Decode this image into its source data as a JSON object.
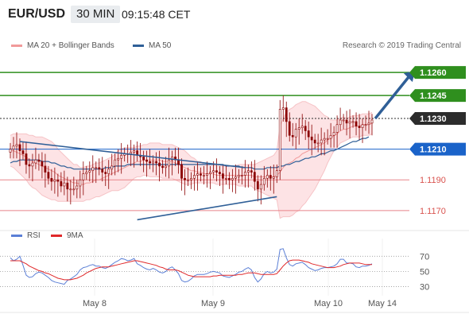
{
  "header": {
    "symbol": "EUR/USD",
    "timeframe": "30 MIN",
    "time": "09:15:48 CET"
  },
  "legend": {
    "bollinger_label": "MA 20 + Bollinger Bands",
    "ma50_label": "MA 50",
    "credit": "Research © 2019 Trading Central",
    "rsi_label": "RSI",
    "ma9_label": "9MA"
  },
  "colors": {
    "bollinger": "#f19a9a",
    "band_fill": "#fde3e5",
    "ma50": "#2f5f97",
    "candle": "#8b0000",
    "candle_up": "#ffffff",
    "rsi": "#5b7fd6",
    "ma9": "#e0282a",
    "green_level": "#2f8f1e",
    "blue_level": "#1a63c9",
    "red_level": "#e8858a",
    "pivot": "#2c2c2c"
  },
  "chart_data": {
    "type": "candlestick",
    "instrument": "EUR/USD",
    "x_labels": [
      "May 8",
      "May 9",
      "May 10",
      "May 14"
    ],
    "y_range": [
      1.1158,
      1.1272
    ],
    "levels": [
      {
        "value": 1.126,
        "label": "1.1260",
        "kind": "resistance",
        "color": "#2f8f1e"
      },
      {
        "value": 1.1245,
        "label": "1.1245",
        "kind": "resistance",
        "color": "#2f8f1e"
      },
      {
        "value": 1.123,
        "label": "1.1230",
        "kind": "pivot",
        "color": "#2c2c2c"
      },
      {
        "value": 1.121,
        "label": "1.1210",
        "kind": "current",
        "color": "#1a63c9"
      },
      {
        "value": 1.119,
        "label": "1.1190",
        "kind": "support",
        "color": "#e8858a"
      },
      {
        "value": 1.117,
        "label": "1.1170",
        "kind": "support",
        "color": "#e8858a"
      }
    ],
    "close": [
      1.121,
      1.1212,
      1.1213,
      1.1209,
      1.1207,
      1.12,
      1.1199,
      1.1201,
      1.1203,
      1.1202,
      1.1199,
      1.1195,
      1.1191,
      1.1189,
      1.119,
      1.1189,
      1.1186,
      1.1188,
      1.1184,
      1.1184,
      1.1184,
      1.1186,
      1.119,
      1.1194,
      1.1195,
      1.1196,
      1.1198,
      1.1198,
      1.1197,
      1.1195,
      1.1194,
      1.1197,
      1.1199,
      1.1203,
      1.1204,
      1.1206,
      1.1207,
      1.1207,
      1.1208,
      1.1209,
      1.1206,
      1.1205,
      1.1203,
      1.1202,
      1.1201,
      1.1202,
      1.1201,
      1.1199,
      1.1198,
      1.1199,
      1.1203,
      1.1205,
      1.1203,
      1.12,
      1.1191,
      1.119,
      1.119,
      1.1191,
      1.1193,
      1.1194,
      1.1193,
      1.1193,
      1.1194,
      1.1195,
      1.1196,
      1.1195,
      1.1194,
      1.1191,
      1.1191,
      1.119,
      1.1191,
      1.1192,
      1.1193,
      1.1193,
      1.1195,
      1.1196,
      1.1195,
      1.1189,
      1.1184,
      1.1187,
      1.1191,
      1.1193,
      1.1191,
      1.1192,
      1.1196,
      1.1236,
      1.1237,
      1.1228,
      1.1219,
      1.1218,
      1.1223,
      1.1224,
      1.1225,
      1.1222,
      1.1218,
      1.1216,
      1.1214,
      1.1214,
      1.1216,
      1.1217,
      1.1217,
      1.1219,
      1.1221,
      1.1226,
      1.1229,
      1.1229,
      1.1227,
      1.1228,
      1.1228,
      1.1225,
      1.1224,
      1.1226,
      1.1226,
      1.1227,
      1.1229
    ],
    "ma20": [
      1.1209,
      1.1209,
      1.1208,
      1.1207,
      1.1206,
      1.1205,
      1.1203,
      1.1202,
      1.1201,
      1.12,
      1.1199,
      1.1198,
      1.1197,
      1.1196,
      1.1195,
      1.1193,
      1.1192,
      1.1191,
      1.119,
      1.1189,
      1.1188,
      1.1188,
      1.1187,
      1.1187,
      1.1188,
      1.1188,
      1.1189,
      1.119,
      1.119,
      1.1191,
      1.1192,
      1.1193,
      1.1194,
      1.1195,
      1.1196,
      1.1197,
      1.1198,
      1.1199,
      1.12,
      1.1201,
      1.1202,
      1.1202,
      1.1203,
      1.1203,
      1.1203,
      1.1203,
      1.1203,
      1.1203,
      1.1202,
      1.1202,
      1.1202,
      1.1202,
      1.1201,
      1.12,
      1.1199,
      1.1198,
      1.1197,
      1.1196,
      1.1196,
      1.1195,
      1.1195,
      1.1194,
      1.1194,
      1.1194,
      1.1194,
      1.1193,
      1.1193,
      1.1193,
      1.1193,
      1.1193,
      1.1193,
      1.1193,
      1.1193,
      1.1193,
      1.1193,
      1.1193,
      1.1193,
      1.1192,
      1.1192,
      1.1192,
      1.1192,
      1.1192,
      1.1192,
      1.1192,
      1.1193,
      1.1195,
      1.1198,
      1.12,
      1.1201,
      1.1202,
      1.1204,
      1.1205,
      1.1207,
      1.1208,
      1.1209,
      1.121,
      1.1211,
      1.1212,
      1.1213,
      1.1214,
      1.1216,
      1.1217,
      1.1219,
      1.122,
      1.1222,
      1.1223,
      1.1223,
      1.1224,
      1.1225,
      1.1225,
      1.1225,
      1.1226,
      1.1226,
      1.1226,
      1.1227
    ],
    "band_width": [
      0.001,
      0.0011,
      0.0012,
      0.0013,
      0.0014,
      0.0015,
      0.0016,
      0.0017,
      0.0017,
      0.0018,
      0.0019,
      0.0019,
      0.0019,
      0.0019,
      0.0018,
      0.0017,
      0.0016,
      0.0015,
      0.0014,
      0.0013,
      0.0012,
      0.0012,
      0.0011,
      0.0011,
      0.0011,
      0.0011,
      0.0011,
      0.0011,
      0.0011,
      0.0011,
      0.0011,
      0.0011,
      0.0011,
      0.0012,
      0.0013,
      0.0013,
      0.0013,
      0.0012,
      0.0011,
      0.001,
      0.001,
      0.001,
      0.001,
      0.001,
      0.0011,
      0.0011,
      0.0011,
      0.0011,
      0.0011,
      0.0011,
      0.0011,
      0.0011,
      0.0011,
      0.0011,
      0.0011,
      0.0011,
      0.001,
      0.0009,
      0.0008,
      0.0007,
      0.0007,
      0.0006,
      0.0006,
      0.0006,
      0.0006,
      0.0006,
      0.0006,
      0.0006,
      0.0006,
      0.0006,
      0.0006,
      0.0006,
      0.0007,
      0.0007,
      0.0007,
      0.0007,
      0.0007,
      0.0008,
      0.0009,
      0.001,
      0.0011,
      0.0012,
      0.0013,
      0.0014,
      0.0016,
      0.003,
      0.0032,
      0.0034,
      0.0035,
      0.0035,
      0.0035,
      0.0035,
      0.0034,
      0.0033,
      0.0031,
      0.0029,
      0.0027,
      0.0024,
      0.0021,
      0.0018,
      0.0015,
      0.0012,
      0.001,
      0.0009,
      0.0008,
      0.0008,
      0.0007,
      0.0007,
      0.0007,
      0.0007,
      0.0007,
      0.0007,
      0.0007,
      0.0007,
      0.0007
    ],
    "ma50": [
      1.1201,
      1.1202,
      1.1202,
      1.1203,
      1.1203,
      1.1203,
      1.1203,
      1.1203,
      1.1203,
      1.1203,
      1.1202,
      1.1202,
      1.1202,
      1.1201,
      1.1201,
      1.12,
      1.1199,
      1.1199,
      1.1198,
      1.1198,
      1.1197,
      1.1197,
      1.1197,
      1.1197,
      1.1197,
      1.1197,
      1.1197,
      1.1197,
      1.1197,
      1.1197,
      1.1198,
      1.1198,
      1.1198,
      1.1199,
      1.1199,
      1.1199,
      1.1199,
      1.12,
      1.12,
      1.12,
      1.12,
      1.12,
      1.12,
      1.12,
      1.12,
      1.12,
      1.12,
      1.12,
      1.12,
      1.12,
      1.12,
      1.12,
      1.12,
      1.12,
      1.12,
      1.12,
      1.12,
      1.12,
      1.12,
      1.12,
      1.12,
      1.12,
      1.12,
      1.12,
      1.12,
      1.12,
      1.12,
      1.12,
      1.1199,
      1.1199,
      1.1199,
      1.1199,
      1.1199,
      1.1198,
      1.1198,
      1.1198,
      1.1198,
      1.1197,
      1.1197,
      1.1197,
      1.1197,
      1.1198,
      1.1198,
      1.1198,
      1.1198,
      1.1199,
      1.1199,
      1.12,
      1.12,
      1.1201,
      1.1202,
      1.1202,
      1.1203,
      1.1204,
      1.1204,
      1.1205,
      1.1205,
      1.1206,
      1.1207,
      1.1207,
      1.1208,
      1.1209,
      1.1209,
      1.121,
      1.1211,
      1.1212,
      1.1213,
      1.1214,
      1.1215,
      1.1215,
      1.1216,
      1.1217,
      1.1217,
      1.1218
    ],
    "trendlines": [
      {
        "from": [
          3,
          1.1215
        ],
        "to": [
          74,
          1.1198
        ]
      },
      {
        "from": [
          40,
          1.1164
        ],
        "to": [
          84,
          1.1179
        ]
      }
    ],
    "forecast_arrow": {
      "from": [
        115,
        1.123
      ],
      "to": [
        127,
        1.126
      ]
    },
    "rsi": {
      "yticks": [
        30,
        50,
        70
      ],
      "values": [
        68,
        64,
        66,
        70,
        58,
        45,
        42,
        43,
        47,
        49,
        48,
        45,
        42,
        38,
        36,
        35,
        34,
        33,
        38,
        40,
        43,
        46,
        52,
        55,
        56,
        58,
        59,
        57,
        57,
        55,
        54,
        56,
        59,
        62,
        64,
        67,
        66,
        64,
        65,
        67,
        60,
        58,
        55,
        53,
        52,
        54,
        52,
        49,
        48,
        50,
        54,
        56,
        52,
        47,
        38,
        36,
        37,
        40,
        44,
        46,
        46,
        46,
        47,
        49,
        50,
        49,
        48,
        44,
        43,
        42,
        44,
        46,
        49,
        50,
        53,
        55,
        52,
        42,
        36,
        40,
        47,
        50,
        48,
        49,
        53,
        79,
        80,
        68,
        59,
        57,
        60,
        61,
        62,
        59,
        55,
        53,
        51,
        52,
        54,
        55,
        55,
        56,
        57,
        60,
        66,
        66,
        61,
        61,
        60,
        56,
        55,
        57,
        57,
        58,
        60
      ],
      "ma9": [
        64,
        64,
        64,
        64,
        62,
        60,
        57,
        55,
        53,
        51,
        50,
        48,
        47,
        45,
        43,
        41,
        40,
        39,
        39,
        39,
        40,
        41,
        43,
        45,
        48,
        50,
        52,
        54,
        55,
        56,
        56,
        56,
        57,
        58,
        59,
        60,
        61,
        62,
        63,
        64,
        64,
        63,
        62,
        61,
        60,
        59,
        58,
        56,
        55,
        53,
        52,
        52,
        52,
        51,
        49,
        47,
        45,
        44,
        43,
        43,
        43,
        43,
        43,
        43,
        44,
        44,
        45,
        45,
        45,
        45,
        45,
        45,
        46,
        46,
        47,
        48,
        48,
        48,
        47,
        46,
        46,
        46,
        46,
        46,
        47,
        52,
        57,
        61,
        64,
        65,
        65,
        65,
        64,
        63,
        62,
        60,
        59,
        58,
        57,
        56,
        55,
        55,
        55,
        56,
        57,
        59,
        60,
        61,
        61,
        61,
        61,
        60,
        59,
        59,
        59
      ]
    }
  }
}
